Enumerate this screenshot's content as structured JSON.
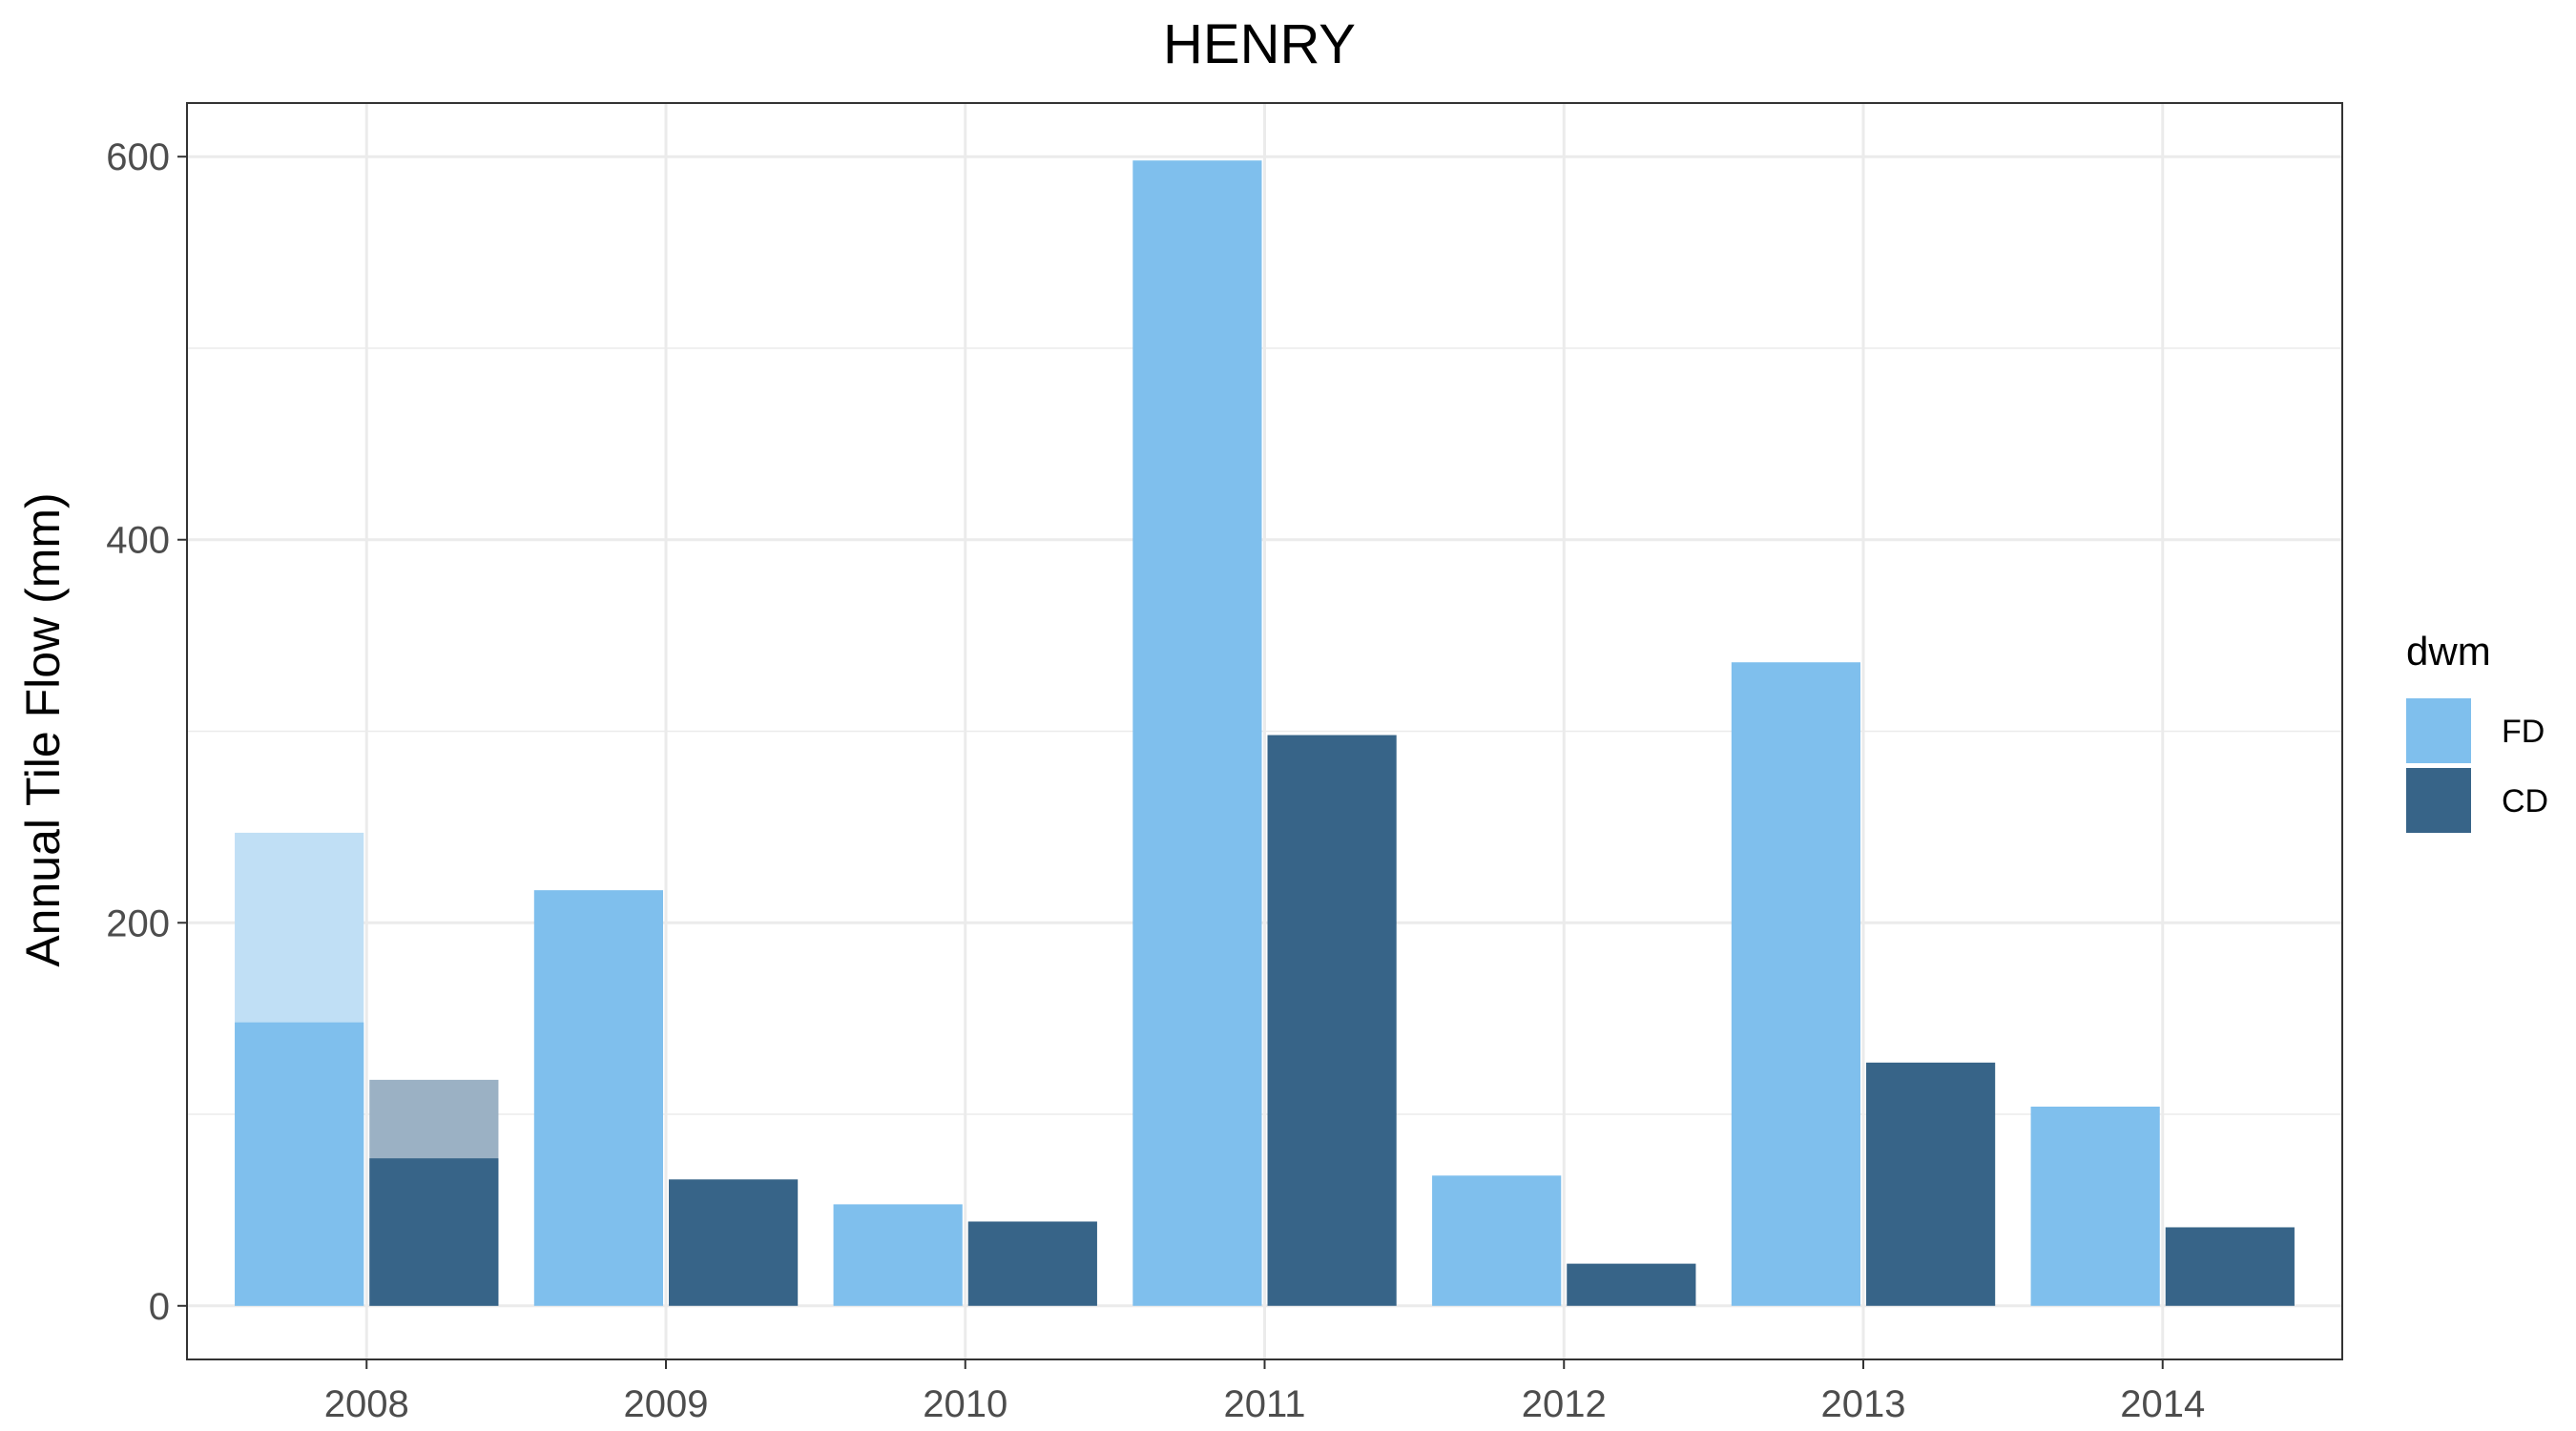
{
  "chart_data": {
    "type": "bar",
    "title": "HENRY",
    "xlabel": "",
    "ylabel": "Annual Tile Flow (mm)",
    "categories": [
      "2008",
      "2009",
      "2010",
      "2011",
      "2012",
      "2013",
      "2014"
    ],
    "ylim": [
      -28,
      628
    ],
    "yticks": [
      0,
      200,
      400,
      600
    ],
    "grid": true,
    "legend": {
      "title": "dwm",
      "position": "right"
    },
    "series": [
      {
        "name": "FD",
        "color": "#7fbfed",
        "values": [
          148,
          217,
          53,
          598,
          68,
          336,
          104
        ],
        "faded_extension": [
          247,
          null,
          null,
          null,
          null,
          null,
          null
        ],
        "faded_color": "#c0dff5"
      },
      {
        "name": "CD",
        "color": "#376488",
        "values": [
          77,
          66,
          44,
          298,
          22,
          127,
          41
        ],
        "faded_extension": [
          118,
          null,
          null,
          null,
          null,
          null,
          null
        ],
        "faded_color": "#9bb1c4"
      }
    ]
  }
}
